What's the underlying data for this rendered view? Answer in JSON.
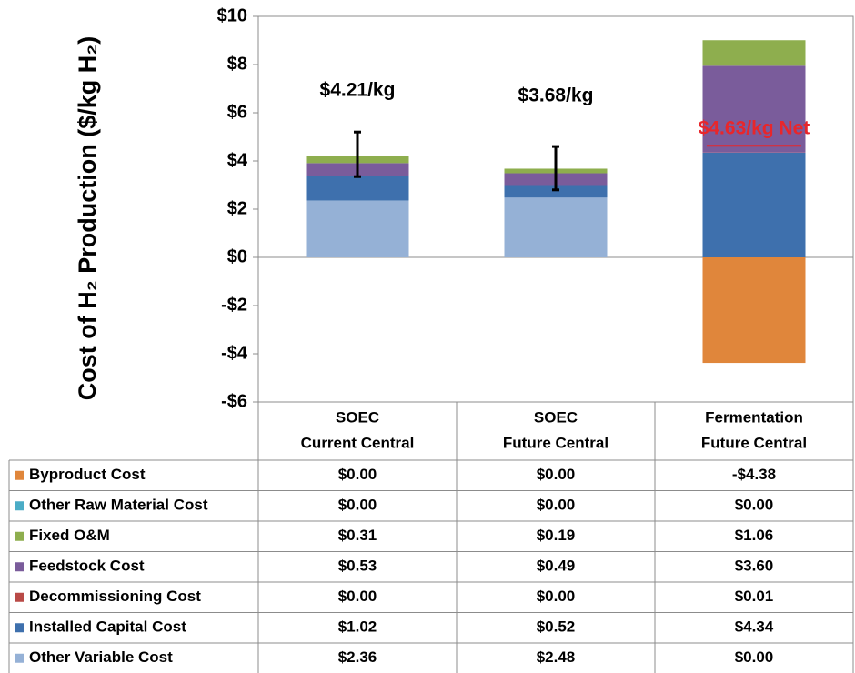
{
  "chart_data": {
    "type": "stacked_bar",
    "ylabel": "Cost  of H₂ Production ($/kg H₂)",
    "categories": [
      [
        "SOEC",
        "Current Central"
      ],
      [
        "SOEC",
        "Future Central"
      ],
      [
        "Fermentation",
        "Future Central"
      ]
    ],
    "series": [
      {
        "name": "Byproduct Cost",
        "color": "#e0863b",
        "values": [
          0,
          0,
          -4.38
        ],
        "value_labels": [
          "$0.00",
          "$0.00",
          "-$4.38"
        ]
      },
      {
        "name": "Other Raw Material Cost",
        "color": "#4bacc6",
        "values": [
          0,
          0,
          0
        ],
        "value_labels": [
          "$0.00",
          "$0.00",
          "$0.00"
        ]
      },
      {
        "name": "Fixed O&M",
        "color": "#8eae4e",
        "values": [
          0.31,
          0.19,
          1.06
        ],
        "value_labels": [
          "$0.31",
          "$0.19",
          "$1.06"
        ]
      },
      {
        "name": "Feedstock Cost",
        "color": "#7a5c9b",
        "values": [
          0.53,
          0.49,
          3.6
        ],
        "value_labels": [
          "$0.53",
          "$0.49",
          "$3.60"
        ]
      },
      {
        "name": "Decommissioning Cost",
        "color": "#b94a47",
        "values": [
          0,
          0,
          0.01
        ],
        "value_labels": [
          "$0.00",
          "$0.00",
          "$0.01"
        ]
      },
      {
        "name": "Installed Capital Cost",
        "color": "#3e70ad",
        "values": [
          1.02,
          0.52,
          4.34
        ],
        "value_labels": [
          "$1.02",
          "$0.52",
          "$4.34"
        ]
      },
      {
        "name": "Other Variable Cost",
        "color": "#95b1d6",
        "values": [
          2.36,
          2.48,
          0
        ],
        "value_labels": [
          "$2.36",
          "$2.48",
          "$0.00"
        ]
      }
    ],
    "error_low": [
      3.35,
      2.8,
      null
    ],
    "error_high": [
      5.2,
      4.6,
      null
    ],
    "annotations": [
      {
        "label": "$4.21/kg",
        "value": 4.21
      },
      {
        "label": "$3.68/kg",
        "value": 3.68
      },
      {
        "label": "$4.63/kg Net",
        "value": 4.63,
        "color": "#e8262b"
      }
    ],
    "ylim": [
      -6,
      10
    ],
    "yticks": [
      {
        "value": -6,
        "label": "-$6"
      },
      {
        "value": -4,
        "label": "-$4"
      },
      {
        "value": -2,
        "label": "-$2"
      },
      {
        "value": 0,
        "label": "$0"
      },
      {
        "value": 2,
        "label": "$2"
      },
      {
        "value": 4,
        "label": "$4"
      },
      {
        "value": 6,
        "label": "$6"
      },
      {
        "value": 8,
        "label": "$8"
      },
      {
        "value": 10,
        "label": "$10"
      }
    ]
  }
}
